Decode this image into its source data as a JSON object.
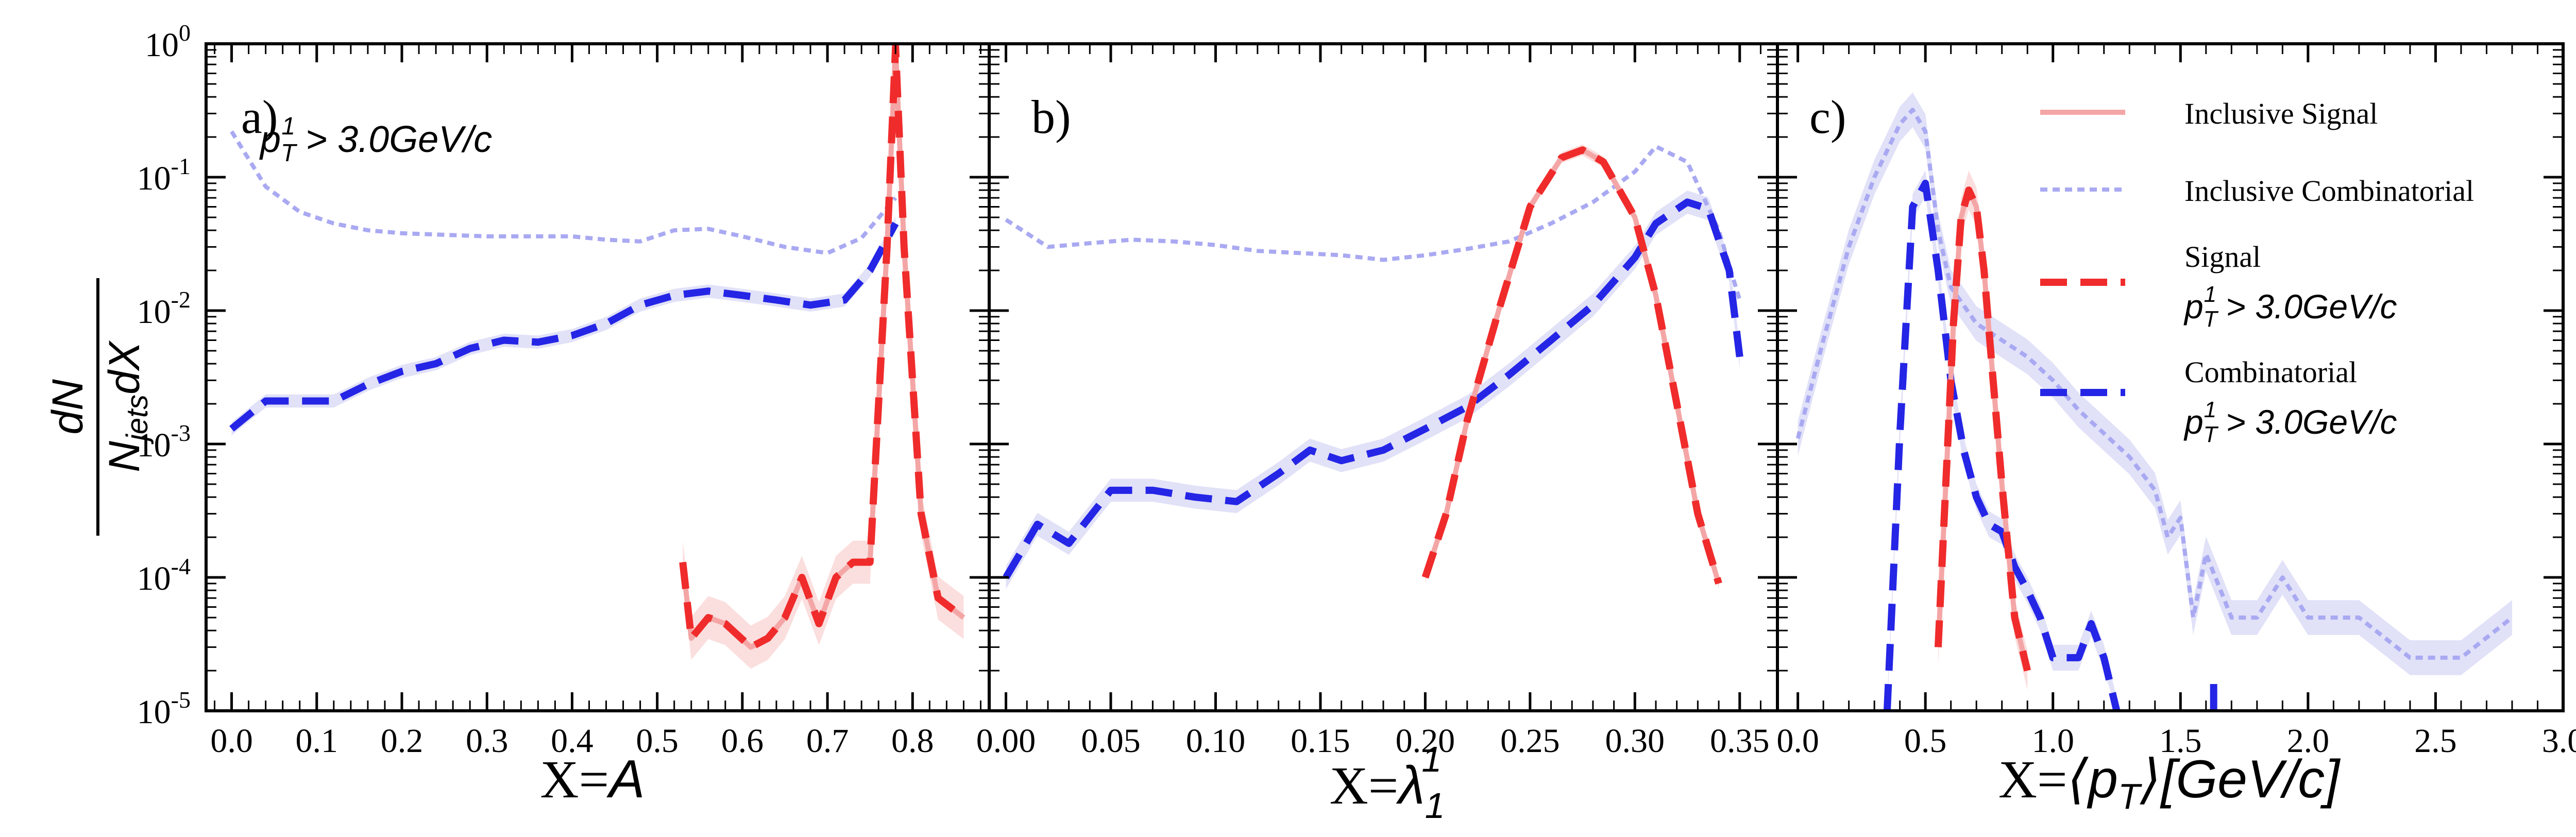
{
  "ylabel": {
    "numerator": "dN",
    "denominator_main": "N",
    "denominator_sub": "jets",
    "denominator_tail": "dX"
  },
  "colors": {
    "inclusive_signal": "#f4a6a6",
    "inclusive_combinatorial": "#a9a9f2",
    "signal": "#f02b2b",
    "combinatorial": "#2525e6",
    "signal_band": "#f7c2c2",
    "combinatorial_band": "#c9c9f3"
  },
  "legend": [
    {
      "key": "inclusive_signal",
      "line1": "Inclusive Signal",
      "line2": ""
    },
    {
      "key": "inclusive_combinatorial",
      "line1": "Inclusive Combinatorial",
      "line2": ""
    },
    {
      "key": "signal",
      "line1": "Signal",
      "line2": "p_T^1 > 3.0GeV/c"
    },
    {
      "key": "combinatorial",
      "line1": "Combinatorial",
      "line2": "p_T^1 > 3.0GeV/c"
    }
  ],
  "panels": [
    {
      "label": "a)",
      "annotation": "p_T^1 > 3.0GeV/c",
      "xlabel": "X=A"
    },
    {
      "label": "b)",
      "annotation": "",
      "xlabel": "X=λ_1^1"
    },
    {
      "label": "c)",
      "annotation": "",
      "xlabel": "X=⟨p_T⟩[GeV/c]"
    }
  ],
  "chart_data": [
    {
      "type": "line",
      "panel": "a",
      "xlabel": "X=A",
      "ylabel": "dN/(N_jets dX)",
      "yscale": "log",
      "ylim": [
        1e-05,
        1
      ],
      "xlim": [
        -0.03,
        0.89
      ],
      "xticks": [
        0.0,
        0.1,
        0.2,
        0.3,
        0.4,
        0.5,
        0.6,
        0.7,
        0.8
      ],
      "xtick_labels": [
        "0.0",
        "0.1",
        "0.2",
        "0.3",
        "0.4",
        "0.5",
        "0.6",
        "0.7",
        "0.8"
      ],
      "yticks": [
        1e-05,
        0.0001,
        0.001,
        0.01,
        0.1,
        1
      ],
      "ytick_labels": [
        "10^-5",
        "10^-4",
        "10^-3",
        "10^-2",
        "10^-1",
        "10^0"
      ],
      "series": [
        {
          "name": "Inclusive Combinatorial",
          "key": "inclusive_combinatorial",
          "style": "dotted",
          "x": [
            0.0,
            0.04,
            0.08,
            0.12,
            0.16,
            0.2,
            0.25,
            0.3,
            0.35,
            0.4,
            0.44,
            0.48,
            0.52,
            0.56,
            0.6,
            0.65,
            0.7,
            0.74,
            0.78
          ],
          "y": [
            0.22,
            0.085,
            0.055,
            0.045,
            0.04,
            0.038,
            0.037,
            0.036,
            0.036,
            0.036,
            0.034,
            0.033,
            0.04,
            0.041,
            0.036,
            0.03,
            0.027,
            0.035,
            0.07
          ]
        },
        {
          "name": "Combinatorial",
          "key": "combinatorial",
          "style": "dashed",
          "x": [
            0.0,
            0.04,
            0.08,
            0.12,
            0.16,
            0.2,
            0.24,
            0.28,
            0.32,
            0.36,
            0.4,
            0.44,
            0.48,
            0.52,
            0.56,
            0.6,
            0.64,
            0.68,
            0.72,
            0.75,
            0.78
          ],
          "y": [
            0.0013,
            0.0021,
            0.0021,
            0.0021,
            0.0028,
            0.0035,
            0.004,
            0.0052,
            0.006,
            0.0058,
            0.0065,
            0.008,
            0.011,
            0.013,
            0.014,
            0.013,
            0.012,
            0.011,
            0.012,
            0.02,
            0.045
          ],
          "band": 0.12
        },
        {
          "name": "Inclusive Signal",
          "key": "inclusive_signal",
          "style": "solid",
          "x": [
            0.53,
            0.54,
            0.56,
            0.58,
            0.61,
            0.63,
            0.65,
            0.67,
            0.69,
            0.71,
            0.73,
            0.75,
            0.77,
            0.78,
            0.79,
            0.81,
            0.83,
            0.86
          ],
          "y": [
            0.00013,
            3.5e-05,
            5e-05,
            4.5e-05,
            3e-05,
            3.5e-05,
            5e-05,
            0.0001,
            4.5e-05,
            0.0001,
            0.00013,
            0.00013,
            0.03,
            0.95,
            0.03,
            0.0003,
            7e-05,
            5e-05
          ],
          "band": 0.45
        },
        {
          "name": "Signal p_T^1 > 3.0GeV/c",
          "key": "signal",
          "style": "dashed",
          "x": [
            0.53,
            0.54,
            0.56,
            0.58,
            0.61,
            0.63,
            0.65,
            0.67,
            0.69,
            0.71,
            0.73,
            0.75,
            0.77,
            0.78,
            0.79,
            0.81,
            0.83,
            0.86
          ],
          "y": [
            0.00013,
            3.5e-05,
            5e-05,
            4.5e-05,
            3e-05,
            3.5e-05,
            5e-05,
            0.0001,
            4.5e-05,
            0.0001,
            0.00013,
            0.00013,
            0.03,
            0.95,
            0.03,
            0.0003,
            7e-05,
            5e-05
          ]
        }
      ]
    },
    {
      "type": "line",
      "panel": "b",
      "xlabel": "X=λ_1^1",
      "yscale": "log",
      "ylim": [
        1e-05,
        1
      ],
      "xlim": [
        -0.008,
        0.368
      ],
      "xticks": [
        0.0,
        0.05,
        0.1,
        0.15,
        0.2,
        0.25,
        0.3,
        0.35
      ],
      "xtick_labels": [
        "0.00",
        "0.05",
        "0.10",
        "0.15",
        "0.20",
        "0.25",
        "0.30",
        "0.35"
      ],
      "series": [
        {
          "name": "Inclusive Combinatorial",
          "key": "inclusive_combinatorial",
          "style": "dotted",
          "x": [
            0.0,
            0.02,
            0.04,
            0.06,
            0.08,
            0.1,
            0.12,
            0.14,
            0.16,
            0.18,
            0.2,
            0.22,
            0.24,
            0.26,
            0.28,
            0.3,
            0.31,
            0.325,
            0.34,
            0.35
          ],
          "y": [
            0.048,
            0.03,
            0.032,
            0.034,
            0.033,
            0.031,
            0.028,
            0.027,
            0.026,
            0.024,
            0.026,
            0.029,
            0.033,
            0.045,
            0.065,
            0.11,
            0.17,
            0.13,
            0.04,
            0.012
          ]
        },
        {
          "name": "Combinatorial",
          "key": "combinatorial",
          "style": "dashed",
          "x": [
            0.0,
            0.015,
            0.03,
            0.05,
            0.07,
            0.09,
            0.11,
            0.13,
            0.145,
            0.16,
            0.18,
            0.2,
            0.22,
            0.24,
            0.26,
            0.28,
            0.3,
            0.31,
            0.325,
            0.335,
            0.345,
            0.35
          ],
          "y": [
            0.0001,
            0.00025,
            0.00018,
            0.00045,
            0.00045,
            0.0004,
            0.00037,
            0.0006,
            0.0009,
            0.00075,
            0.0009,
            0.0013,
            0.0019,
            0.0033,
            0.006,
            0.011,
            0.025,
            0.045,
            0.065,
            0.058,
            0.02,
            0.0045
          ],
          "band": 0.22
        },
        {
          "name": "Inclusive Signal",
          "key": "inclusive_signal",
          "style": "solid",
          "x": [
            0.2,
            0.21,
            0.22,
            0.235,
            0.25,
            0.265,
            0.275,
            0.285,
            0.3,
            0.31,
            0.32,
            0.33,
            0.34
          ],
          "y": [
            0.0001,
            0.0003,
            0.0015,
            0.01,
            0.06,
            0.14,
            0.16,
            0.13,
            0.05,
            0.013,
            0.002,
            0.0003,
            9e-05
          ],
          "band": 0.1
        },
        {
          "name": "Signal p_T^1 > 3.0GeV/c",
          "key": "signal",
          "style": "dashed",
          "x": [
            0.2,
            0.21,
            0.22,
            0.235,
            0.25,
            0.265,
            0.275,
            0.285,
            0.3,
            0.31,
            0.32,
            0.33,
            0.34
          ],
          "y": [
            0.0001,
            0.0003,
            0.0015,
            0.01,
            0.06,
            0.14,
            0.16,
            0.13,
            0.05,
            0.013,
            0.002,
            0.0003,
            9e-05
          ]
        }
      ]
    },
    {
      "type": "line",
      "panel": "c",
      "xlabel": "X=⟨p_T⟩[GeV/c]",
      "yscale": "log",
      "ylim": [
        1e-05,
        1
      ],
      "xlim": [
        -0.08,
        3.0
      ],
      "xticks": [
        0.0,
        0.5,
        1.0,
        1.5,
        2.0,
        2.5,
        3.0
      ],
      "xtick_labels": [
        "0.0",
        "0.5",
        "1.0",
        "1.5",
        "2.0",
        "2.5",
        "3.0"
      ],
      "series": [
        {
          "name": "Inclusive Combinatorial",
          "key": "inclusive_combinatorial",
          "style": "dotted",
          "x": [
            0.0,
            0.1,
            0.2,
            0.3,
            0.4,
            0.45,
            0.5,
            0.55,
            0.6,
            0.7,
            0.8,
            0.9,
            1.0,
            1.1,
            1.2,
            1.3,
            1.4,
            1.45,
            1.5,
            1.55,
            1.6,
            1.7,
            1.8,
            1.9,
            2.0,
            2.2,
            2.4,
            2.6,
            2.8
          ],
          "y": [
            0.0011,
            0.006,
            0.03,
            0.1,
            0.25,
            0.32,
            0.22,
            0.04,
            0.015,
            0.008,
            0.006,
            0.0045,
            0.003,
            0.0018,
            0.0012,
            0.0008,
            0.00045,
            0.0002,
            0.00028,
            5e-05,
            0.00015,
            5e-05,
            5e-05,
            0.0001,
            5e-05,
            5e-05,
            2.5e-05,
            2.5e-05,
            5e-05
          ],
          "band": 0.35
        },
        {
          "name": "Combinatorial",
          "key": "combinatorial",
          "style": "dashed",
          "x": [
            0.35,
            0.4,
            0.45,
            0.5,
            0.55,
            0.6,
            0.65,
            0.7,
            0.75,
            0.8,
            0.85,
            0.9,
            0.95,
            1.0,
            1.05,
            1.1,
            1.15,
            1.2,
            1.25
          ],
          "y": [
            1e-05,
            0.0012,
            0.06,
            0.09,
            0.02,
            0.003,
            0.0009,
            0.0004,
            0.00025,
            0.00022,
            0.00012,
            8e-05,
            5e-05,
            2.5e-05,
            2.5e-05,
            2.5e-05,
            4.5e-05,
            2.5e-05,
            1e-05
          ],
          "band": 0.25
        },
        {
          "name": "Combinatorial (tail)",
          "key": "combinatorial",
          "style": "dashed",
          "x": [
            1.63,
            1.63
          ],
          "y": [
            1e-05,
            2e-05
          ]
        },
        {
          "name": "Inclusive Signal",
          "key": "inclusive_signal",
          "style": "solid",
          "x": [
            0.55,
            0.58,
            0.61,
            0.64,
            0.67,
            0.7,
            0.73,
            0.76,
            0.8,
            0.85,
            0.9
          ],
          "y": [
            3e-05,
            0.0005,
            0.008,
            0.05,
            0.08,
            0.06,
            0.02,
            0.004,
            0.0005,
            5e-05,
            2e-05
          ],
          "band": 0.4
        },
        {
          "name": "Signal p_T^1 > 3.0GeV/c",
          "key": "signal",
          "style": "dashed",
          "x": [
            0.55,
            0.58,
            0.61,
            0.64,
            0.67,
            0.7,
            0.73,
            0.76,
            0.8,
            0.85,
            0.9
          ],
          "y": [
            3e-05,
            0.0005,
            0.008,
            0.05,
            0.08,
            0.06,
            0.02,
            0.004,
            0.0005,
            5e-05,
            2e-05
          ]
        }
      ]
    }
  ]
}
